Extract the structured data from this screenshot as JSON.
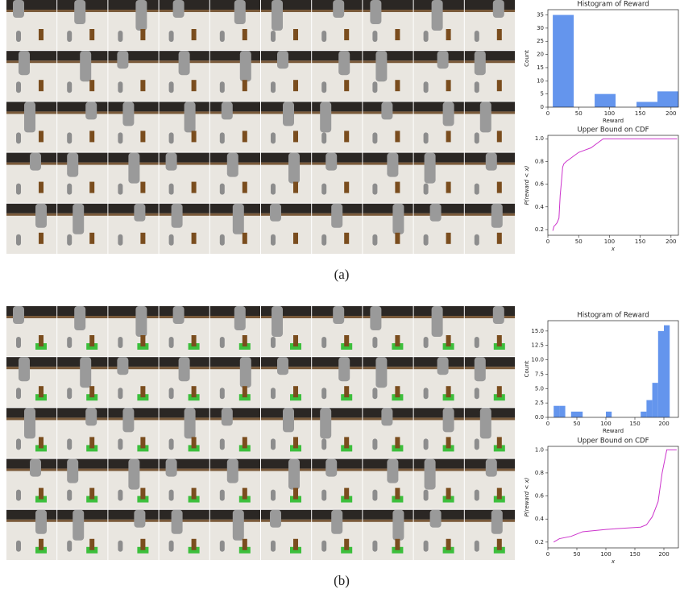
{
  "captions": [
    "(a)",
    "(b)"
  ],
  "chart_data": [
    {
      "type": "histogram",
      "title": "Histogram of Reward",
      "x_label": "Reward",
      "y_label": "Count",
      "color": "#6495ed",
      "bins": [
        8,
        42,
        76,
        110,
        144,
        178,
        212
      ],
      "values": [
        35,
        0,
        5,
        0,
        2,
        6
      ],
      "xlim": [
        0,
        212
      ],
      "xticks": [
        0,
        50,
        100,
        150,
        200
      ],
      "ylim": [
        0,
        37
      ],
      "yticks": [
        0,
        5,
        10,
        15,
        20,
        25,
        30,
        35
      ]
    },
    {
      "type": "line",
      "title": "Upper Bound on CDF",
      "x_label": "x",
      "y_label": "P(reward < x)",
      "color": "#cc33cc",
      "x": [
        8,
        10,
        12,
        15,
        18,
        20,
        22,
        24,
        26,
        30,
        35,
        40,
        50,
        60,
        70,
        80,
        90,
        210
      ],
      "values": [
        0.19,
        0.23,
        0.24,
        0.26,
        0.3,
        0.5,
        0.62,
        0.75,
        0.78,
        0.8,
        0.82,
        0.84,
        0.88,
        0.9,
        0.92,
        0.96,
        1,
        1
      ],
      "xlim": [
        0,
        212
      ],
      "xticks": [
        0,
        50,
        100,
        150,
        200
      ],
      "ylim": [
        0.15,
        1.03
      ],
      "yticks": [
        0.2,
        0.4,
        0.6,
        0.8,
        {
          "value": 1,
          "label": "1.0"
        }
      ]
    },
    {
      "type": "histogram",
      "title": "Histogram of Reward",
      "x_label": "Reward",
      "y_label": "Count",
      "color": "#6495ed",
      "bins": [
        10,
        20,
        30,
        40,
        50,
        60,
        70,
        80,
        90,
        100,
        110,
        120,
        130,
        140,
        150,
        160,
        170,
        180,
        190,
        200,
        210,
        220
      ],
      "values": [
        2,
        2,
        0,
        1,
        1,
        0,
        0,
        0,
        0,
        1,
        0,
        0,
        0,
        0,
        0,
        1,
        3,
        6,
        15,
        16,
        0
      ],
      "xlim": [
        0,
        225
      ],
      "xticks": [
        0,
        50,
        100,
        150,
        200
      ],
      "ylim": [
        0,
        16.8
      ],
      "yticks": [
        {
          "value": 0,
          "label": "0.0"
        },
        2.5,
        {
          "value": 5,
          "label": "5.0"
        },
        7.5,
        {
          "value": 10,
          "label": "10.0"
        },
        12.5,
        {
          "value": 15,
          "label": "15.0"
        }
      ]
    },
    {
      "type": "line",
      "title": "Upper Bound on CDF",
      "x_label": "x",
      "y_label": "P(reward < x)",
      "color": "#cc33cc",
      "x": [
        10,
        20,
        40,
        50,
        60,
        100,
        160,
        170,
        180,
        190,
        197,
        205,
        222
      ],
      "values": [
        0.2,
        0.23,
        0.25,
        0.27,
        0.29,
        0.31,
        0.33,
        0.35,
        0.42,
        0.55,
        0.8,
        1,
        1
      ],
      "xlim": [
        0,
        225
      ],
      "xticks": [
        0,
        50,
        100,
        150,
        200
      ],
      "ylim": [
        0.15,
        1.03
      ],
      "yticks": [
        0.2,
        0.4,
        0.6,
        0.8,
        {
          "value": 1,
          "label": "1.0"
        }
      ]
    }
  ]
}
